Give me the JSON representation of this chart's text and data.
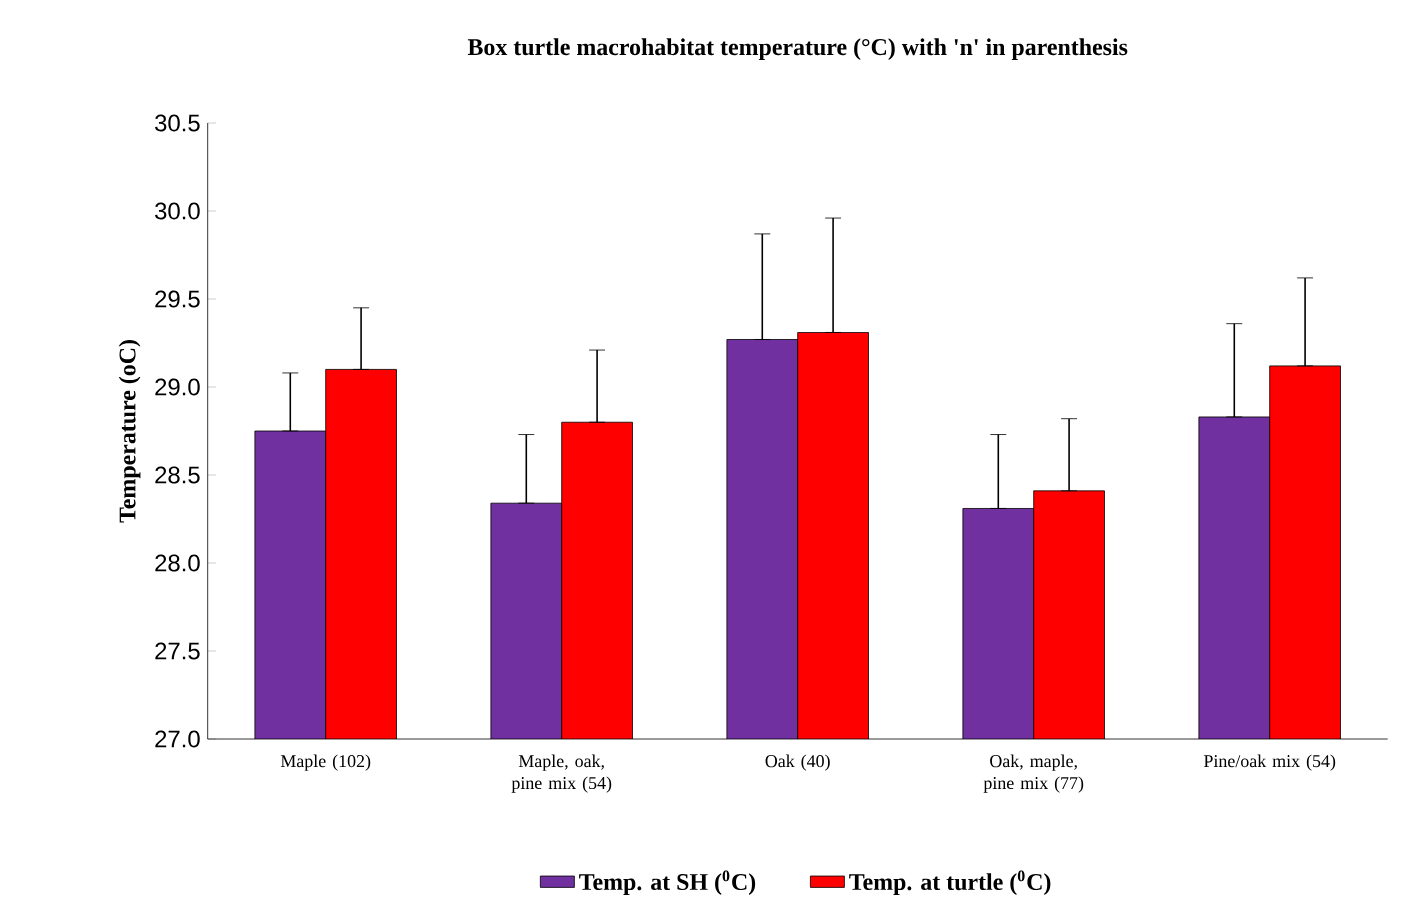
{
  "chart_data": {
    "type": "bar",
    "title": "Box turtle macrohabitat  temperature (°C) with 'n' in parenthesis",
    "ylabel": "Temperature  (oC)",
    "categories": [
      "Maple (102)",
      "Maple, oak, pine mix (54)",
      "Oak (40)",
      "Oak, maple, pine mix (77)",
      "Pine/oak mix (54)"
    ],
    "series": [
      {
        "name": "Temp.  at SH ($^{0}$C)",
        "color": "#7030a0",
        "values": [
          28.75,
          28.34,
          29.27,
          28.31,
          28.83
        ],
        "errors": [
          [
            28.75,
            29.08
          ],
          [
            28.34,
            28.73
          ],
          [
            29.27,
            29.87
          ],
          [
            28.31,
            28.73
          ],
          [
            28.83,
            29.36
          ]
        ]
      },
      {
        "name": "Temp.  at turtle  ($^{0}$C)",
        "color": "#ff0000",
        "values": [
          29.1,
          28.8,
          29.31,
          28.41,
          29.12
        ],
        "errors": [
          [
            29.1,
            29.45
          ],
          [
            28.8,
            29.21
          ],
          [
            29.31,
            29.96
          ],
          [
            28.41,
            28.82
          ],
          [
            29.12,
            29.62
          ]
        ]
      }
    ],
    "ylim": [
      27.0,
      30.5
    ],
    "yticks": [
      {
        "value": 27.0,
        "label": "27.0"
      },
      {
        "value": 27.5,
        "label": "27.5"
      },
      {
        "value": 28.0,
        "label": "28.0"
      },
      {
        "value": 28.5,
        "label": "28.5"
      },
      {
        "value": 29.0,
        "label": "29.0"
      },
      {
        "value": 29.5,
        "label": "29.5"
      },
      {
        "value": 30.0,
        "label": "30.0"
      },
      {
        "value": 30.5,
        "label": "30.5"
      }
    ],
    "grid": false,
    "legend": "bottom"
  }
}
